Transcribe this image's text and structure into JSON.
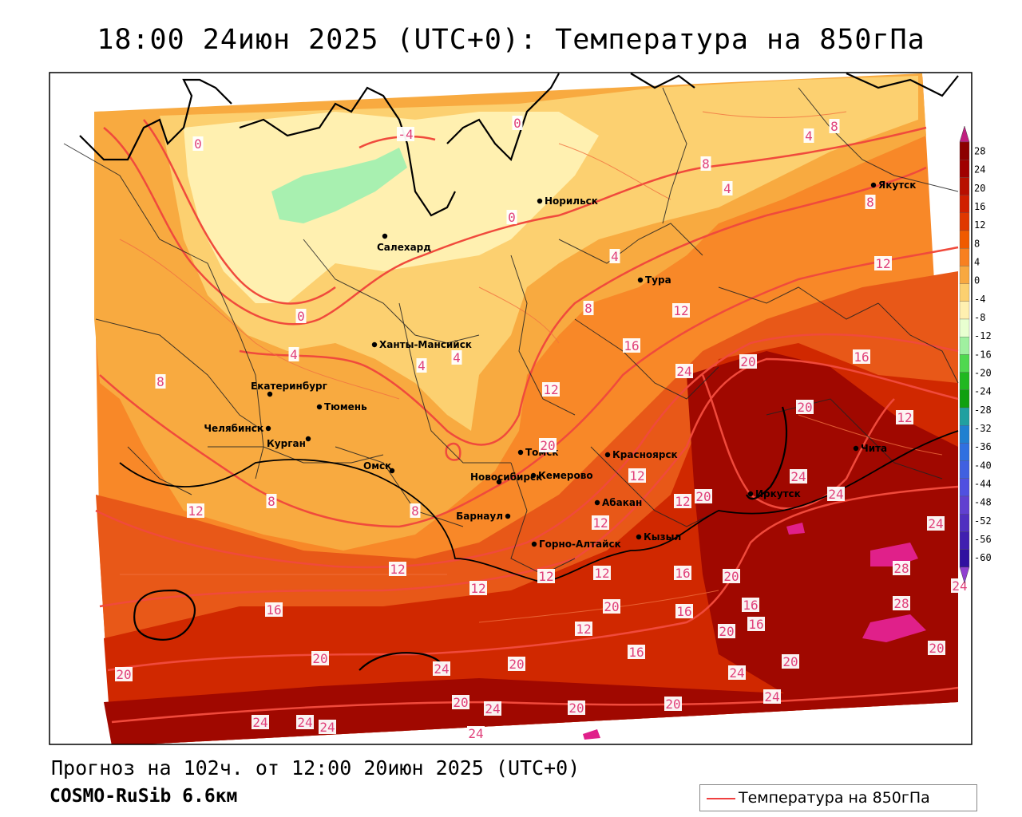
{
  "title": "18:00 24июн 2025 (UTC+0): Температура на 850гПа",
  "forecast_line": "Прогноз на 102ч. от 12:00 20июн 2025 (UTC+0)",
  "model_line": "COSMO-RuSib 6.6км",
  "legend_label": "Температура на 850гПа",
  "colors": {
    "contour": "#f04a3c",
    "frame": "#000000",
    "label_text": "#e0407a"
  },
  "colorbar": {
    "ticks": [
      "28",
      "24",
      "20",
      "16",
      "12",
      "8",
      "4",
      "0",
      "-4",
      "-8",
      "-12",
      "-16",
      "-20",
      "-24",
      "-28",
      "-32",
      "-36",
      "-40",
      "-44",
      "-48",
      "-52",
      "-56",
      "-60"
    ],
    "colors": [
      "#8c0000",
      "#a00000",
      "#b81000",
      "#d02000",
      "#e03800",
      "#f05a00",
      "#f88020",
      "#f8a840",
      "#fcd070",
      "#fff0b0",
      "#e8ffd0",
      "#a0f0a0",
      "#50d850",
      "#20b820",
      "#10a010",
      "#20a0a0",
      "#2080d0",
      "#3070e0",
      "#4060e0",
      "#5050e0",
      "#6040d0",
      "#5030c0",
      "#4020b0",
      "#3010a0"
    ],
    "top_arrow": "#c02080",
    "bottom_arrow": "#9040d0"
  },
  "cities": [
    {
      "name": "Норильск"
    },
    {
      "name": "Якутск"
    },
    {
      "name": "Салехард"
    },
    {
      "name": "Тура"
    },
    {
      "name": "Ханты-Мансийск"
    },
    {
      "name": "Екатеринбург"
    },
    {
      "name": "Тюмень"
    },
    {
      "name": "Челябинск"
    },
    {
      "name": "Курган"
    },
    {
      "name": "Омск"
    },
    {
      "name": "Новосибирск"
    },
    {
      "name": "Томск"
    },
    {
      "name": "Кемерово"
    },
    {
      "name": "Красноярск"
    },
    {
      "name": "Абакан"
    },
    {
      "name": "Барнаул"
    },
    {
      "name": "Горно-Алтайск"
    },
    {
      "name": "Кызыл"
    },
    {
      "name": "Иркутск"
    },
    {
      "name": "Чита"
    }
  ],
  "contour_labels": [
    "0",
    "-4",
    "0",
    "4",
    "8",
    "8",
    "4",
    "8",
    "0",
    "4",
    "12",
    "0",
    "4",
    "4",
    "4",
    "8",
    "12",
    "16",
    "8",
    "12",
    "24",
    "20",
    "16",
    "20",
    "12",
    "20",
    "24",
    "20",
    "24",
    "24",
    "12",
    "8",
    "8",
    "12",
    "12",
    "12",
    "12",
    "12",
    "12",
    "16",
    "12",
    "12",
    "16",
    "16",
    "20",
    "16",
    "20",
    "16",
    "20",
    "20",
    "16",
    "28",
    "28",
    "20",
    "24",
    "20",
    "24",
    "24",
    "20",
    "24",
    "24",
    "20",
    "20",
    "24",
    "20",
    "20",
    "24",
    "24",
    "24"
  ]
}
